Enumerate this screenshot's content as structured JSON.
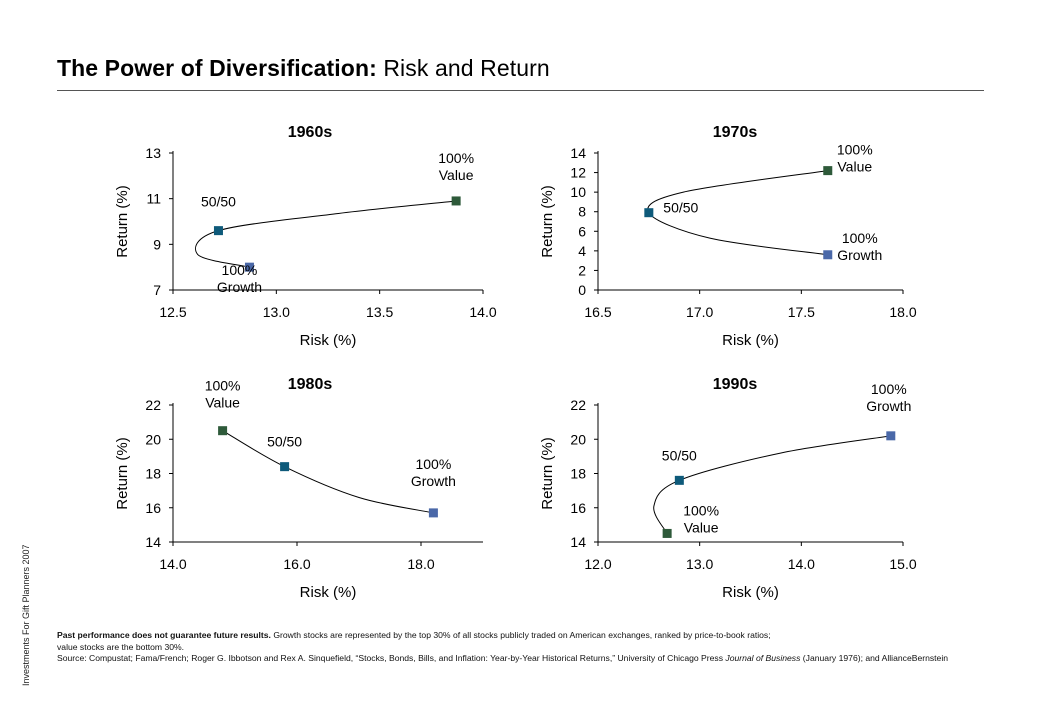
{
  "title": {
    "bold": "The Power of Diversification:",
    "rest": " Risk and Return"
  },
  "side_text": "Investments For Gift Planners 2007",
  "footnote": {
    "bold": "Past performance does not guarantee future results.",
    "line1_rest": " Growth stocks are represented by the top 30% of all stocks publicly traded on American exchanges, ranked by price-to-book ratios;",
    "line2": "value stocks are the bottom 30%.",
    "source_a": "Source: Compustat; Fama/French; Roger G. Ibbotson and Rex A. Sinquefield, “Stocks, Bonds, Bills, and Inflation: Year-by-Year Historical Returns,” University of Chicago Press ",
    "source_journal": "Journal of Business",
    "source_b": " (January 1976); and AllianceBernstein"
  },
  "colors": {
    "value": "#2e5a3a",
    "blend": "#0e5a7a",
    "growth": "#4a68a8",
    "axis": "#000000",
    "curve": "#000000"
  },
  "chart_data": [
    {
      "type": "scatter",
      "title": "1960s",
      "xlabel": "Risk (%)",
      "ylabel": "Return (%)",
      "xlim": [
        12.5,
        14.0
      ],
      "ylim": [
        7,
        13
      ],
      "xticks": [
        "12.5",
        "13.0",
        "13.5",
        "14.0"
      ],
      "yticks": [
        "7",
        "9",
        "11",
        "13"
      ],
      "points": [
        {
          "label": "100% Growth",
          "label_lines": [
            "100%",
            "Growth"
          ],
          "kind": "growth",
          "x": 12.87,
          "y": 8.0
        },
        {
          "label": "50/50",
          "label_lines": [
            "50/50"
          ],
          "kind": "blend",
          "x": 12.72,
          "y": 9.6
        },
        {
          "label": "100% Value",
          "label_lines": [
            "100%",
            "Value"
          ],
          "kind": "value",
          "x": 13.87,
          "y": 10.9
        }
      ],
      "curve": [
        [
          12.87,
          8.0
        ],
        [
          12.62,
          8.55
        ],
        [
          12.72,
          9.6
        ],
        [
          13.3,
          10.35
        ],
        [
          13.87,
          10.9
        ]
      ]
    },
    {
      "type": "scatter",
      "title": "1970s",
      "xlabel": "Risk (%)",
      "ylabel": "Return (%)",
      "xlim": [
        16.5,
        18.0
      ],
      "ylim": [
        0,
        14
      ],
      "xticks": [
        "16.5",
        "17.0",
        "17.5",
        "18.0"
      ],
      "yticks": [
        "0",
        "2",
        "4",
        "6",
        "8",
        "10",
        "12",
        "14"
      ],
      "points": [
        {
          "label": "100% Value",
          "label_lines": [
            "100%",
            "Value"
          ],
          "kind": "value",
          "x": 17.63,
          "y": 12.2
        },
        {
          "label": "50/50",
          "label_lines": [
            "50/50"
          ],
          "kind": "blend",
          "x": 16.75,
          "y": 7.9
        },
        {
          "label": "100% Growth",
          "label_lines": [
            "100%",
            "Growth"
          ],
          "kind": "growth",
          "x": 17.63,
          "y": 3.6
        }
      ],
      "curve": [
        [
          17.63,
          12.2
        ],
        [
          16.92,
          10.0
        ],
        [
          16.75,
          7.9
        ],
        [
          17.05,
          5.3
        ],
        [
          17.63,
          3.6
        ]
      ]
    },
    {
      "type": "scatter",
      "title": "1980s",
      "xlabel": "Risk (%)",
      "ylabel": "Return (%)",
      "xlim": [
        14.0,
        19.0
      ],
      "ylim": [
        14,
        22
      ],
      "xticks": [
        "14.0",
        "16.0",
        "18.0"
      ],
      "yticks": [
        "14",
        "16",
        "18",
        "20",
        "22"
      ],
      "points": [
        {
          "label": "100% Value",
          "label_lines": [
            "100%",
            "Value"
          ],
          "kind": "value",
          "x": 14.8,
          "y": 20.5
        },
        {
          "label": "50/50",
          "label_lines": [
            "50/50"
          ],
          "kind": "blend",
          "x": 15.8,
          "y": 18.4
        },
        {
          "label": "100% Growth",
          "label_lines": [
            "100%",
            "Growth"
          ],
          "kind": "growth",
          "x": 18.2,
          "y": 15.7
        }
      ],
      "curve": [
        [
          14.8,
          20.5
        ],
        [
          15.8,
          18.4
        ],
        [
          17.0,
          16.6
        ],
        [
          18.2,
          15.7
        ]
      ]
    },
    {
      "type": "scatter",
      "title": "1990s",
      "xlabel": "Risk (%)",
      "ylabel": "Return (%)",
      "xlim": [
        12.0,
        15.0
      ],
      "ylim": [
        14,
        22
      ],
      "xticks": [
        "12.0",
        "13.0",
        "14.0",
        "15.0"
      ],
      "yticks": [
        "14",
        "16",
        "18",
        "20",
        "22"
      ],
      "points": [
        {
          "label": "100% Value",
          "label_lines": [
            "100%",
            "Value"
          ],
          "kind": "value",
          "x": 12.68,
          "y": 14.5
        },
        {
          "label": "50/50",
          "label_lines": [
            "50/50"
          ],
          "kind": "blend",
          "x": 12.8,
          "y": 17.6
        },
        {
          "label": "100% Growth",
          "label_lines": [
            "100%",
            "Growth"
          ],
          "kind": "growth",
          "x": 14.88,
          "y": 20.2
        }
      ],
      "curve": [
        [
          12.68,
          14.5
        ],
        [
          12.55,
          16.1
        ],
        [
          12.8,
          17.6
        ],
        [
          13.8,
          19.2
        ],
        [
          14.88,
          20.2
        ]
      ]
    }
  ]
}
